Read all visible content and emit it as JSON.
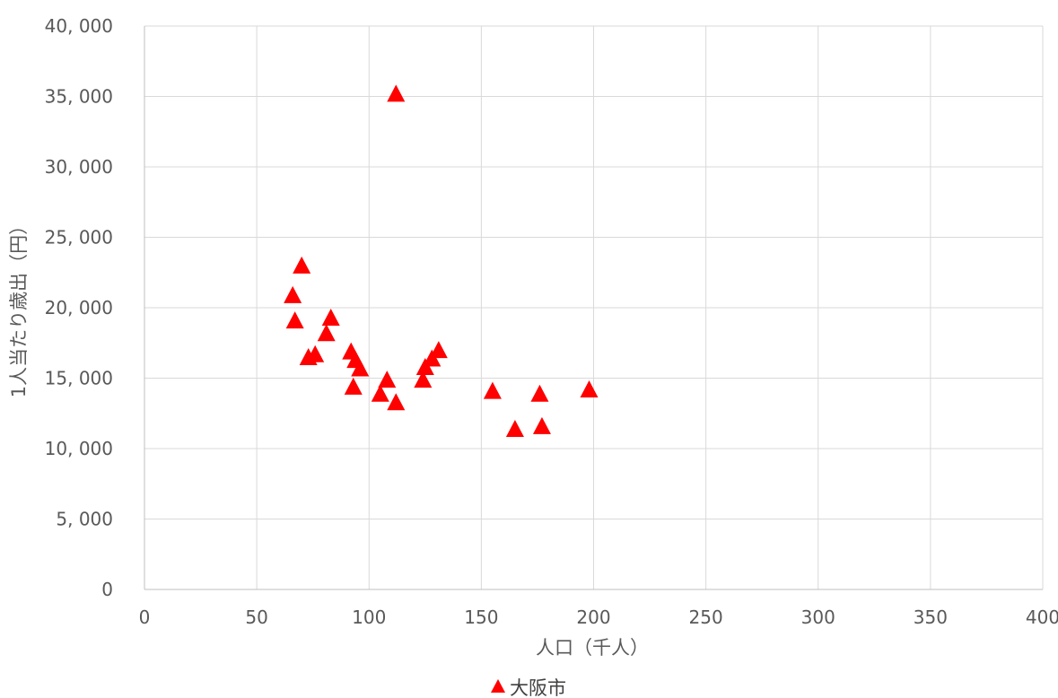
{
  "chart_data": {
    "type": "scatter",
    "title": "",
    "xlabel": "人口（千人）",
    "ylabel": "1人当たり歳出（円）",
    "xlim": [
      0,
      400
    ],
    "ylim": [
      0,
      40000
    ],
    "xticks": [
      0,
      50,
      100,
      150,
      200,
      250,
      300,
      350,
      400
    ],
    "yticks": [
      0,
      5000,
      10000,
      15000,
      20000,
      25000,
      30000,
      35000,
      40000
    ],
    "xtick_labels": [
      "0",
      "50",
      "100",
      "150",
      "200",
      "250",
      "300",
      "350",
      "400"
    ],
    "ytick_labels": [
      "0",
      "5, 000",
      "10, 000",
      "15, 000",
      "20, 000",
      "25, 000",
      "30, 000",
      "35, 000",
      "40, 000"
    ],
    "grid": true,
    "legend_position": "bottom",
    "series": [
      {
        "name": "大阪市",
        "color": "#ff0000",
        "marker": "triangle",
        "points": [
          [
            112,
            35200
          ],
          [
            70,
            23000
          ],
          [
            66,
            20900
          ],
          [
            67,
            19100
          ],
          [
            83,
            19300
          ],
          [
            81,
            18200
          ],
          [
            73,
            16500
          ],
          [
            76,
            16700
          ],
          [
            92,
            16900
          ],
          [
            94,
            16300
          ],
          [
            96,
            15700
          ],
          [
            93,
            14400
          ],
          [
            105,
            13900
          ],
          [
            108,
            14900
          ],
          [
            112,
            13300
          ],
          [
            124,
            14900
          ],
          [
            125,
            15800
          ],
          [
            128,
            16400
          ],
          [
            131,
            17000
          ],
          [
            155,
            14100
          ],
          [
            165,
            11400
          ],
          [
            176,
            13900
          ],
          [
            177,
            11600
          ],
          [
            198,
            14200
          ]
        ]
      }
    ]
  }
}
